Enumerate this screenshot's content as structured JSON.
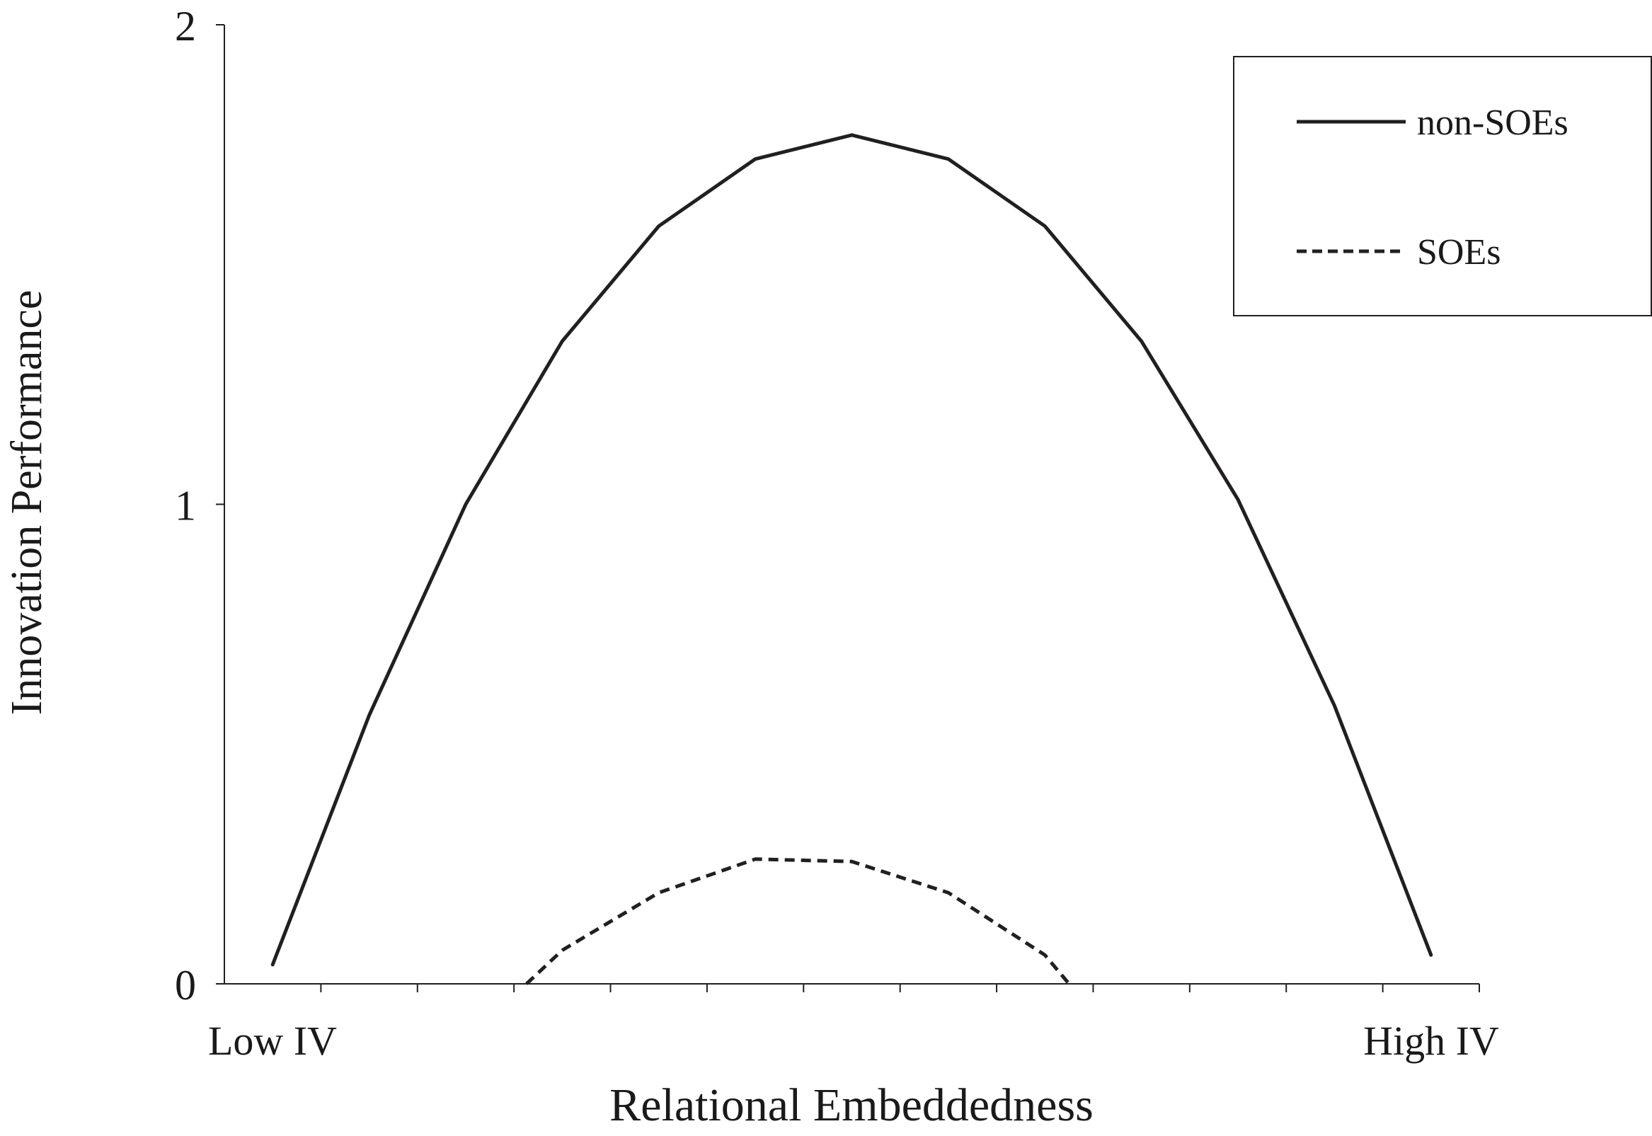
{
  "chart_data": {
    "type": "line",
    "xlabel": "Relational Embeddedness",
    "ylabel": "Innovation Performance",
    "x_tick_labels": {
      "low": "Low IV",
      "high": "High IV"
    },
    "y_ticks": [
      "0",
      "1",
      "2"
    ],
    "ylim": [
      0,
      2
    ],
    "x_tick_count": 14,
    "legend_placement": "top-right",
    "grid": false,
    "series": [
      {
        "name": "non-SOEs",
        "line_style": "solid",
        "color": "#231f20",
        "points": [
          [
            0.5,
            0.04
          ],
          [
            1.5,
            0.56
          ],
          [
            2.5,
            1.0
          ],
          [
            3.5,
            1.34
          ],
          [
            4.5,
            1.58
          ],
          [
            5.5,
            1.72
          ],
          [
            6.5,
            1.77
          ],
          [
            7.5,
            1.72
          ],
          [
            8.5,
            1.58
          ],
          [
            9.5,
            1.34
          ],
          [
            10.5,
            1.01
          ],
          [
            11.5,
            0.58
          ],
          [
            12.5,
            0.06
          ]
        ]
      },
      {
        "name": "SOEs",
        "line_style": "dashed",
        "color": "#231f20",
        "points": [
          [
            3.13,
            0.0
          ],
          [
            3.5,
            0.07
          ],
          [
            4.5,
            0.19
          ],
          [
            5.5,
            0.26
          ],
          [
            6.5,
            0.255
          ],
          [
            7.5,
            0.19
          ],
          [
            8.5,
            0.06
          ],
          [
            8.75,
            0.0
          ]
        ]
      }
    ]
  }
}
